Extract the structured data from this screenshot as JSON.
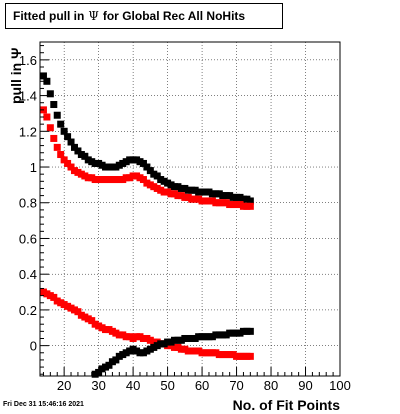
{
  "title": {
    "prefix": "Fitted pull in",
    "symbol": "Ψ",
    "suffix": "for Global Rec All NoHits"
  },
  "footer": {
    "timestamp": "Fri Dec 31 15:46:16 2021"
  },
  "chart_data": {
    "type": "scatter",
    "title": "Fitted pull in Ψ for Global Rec All NoHits",
    "xlabel": "No. of Fit Points",
    "ylabel": "pull in Ψ",
    "xlim": [
      13,
      100
    ],
    "ylim": [
      -0.17,
      1.7
    ],
    "xticks": [
      20,
      30,
      40,
      50,
      60,
      70,
      80,
      90,
      100
    ],
    "yticks": [
      0,
      0.2,
      0.4,
      0.6,
      0.8,
      1,
      1.2,
      1.4,
      1.6
    ],
    "ytick_labels": [
      "0",
      "0.2",
      "0.4",
      "0.6",
      "0.8",
      "1",
      "1.2",
      "1.4",
      "1.6"
    ],
    "grid": true,
    "legend": "none",
    "colors": {
      "black": "#000000",
      "red": "#ff0000"
    },
    "series": [
      {
        "color": "black",
        "x": [
          14,
          15,
          16,
          17,
          18,
          19,
          20,
          21,
          22,
          23,
          24,
          25,
          26,
          27,
          28,
          29,
          30,
          31,
          32,
          33,
          34,
          35,
          36,
          37,
          38,
          39,
          40,
          41,
          42,
          43,
          44,
          45,
          46,
          47,
          48,
          49,
          50,
          51,
          52,
          53,
          54,
          55,
          56,
          57,
          58,
          59,
          60,
          61,
          62,
          63,
          64,
          65,
          66,
          67,
          68,
          69,
          70,
          71,
          72,
          73,
          74
        ],
        "y": [
          1.51,
          1.48,
          1.41,
          1.35,
          1.29,
          1.24,
          1.2,
          1.17,
          1.14,
          1.11,
          1.09,
          1.07,
          1.06,
          1.04,
          1.03,
          1.02,
          1.02,
          1.01,
          1.0,
          1.0,
          1.0,
          1.0,
          1.01,
          1.02,
          1.03,
          1.04,
          1.04,
          1.04,
          1.03,
          1.02,
          1.0,
          0.98,
          0.96,
          0.95,
          0.93,
          0.92,
          0.91,
          0.9,
          0.89,
          0.89,
          0.88,
          0.88,
          0.87,
          0.87,
          0.87,
          0.86,
          0.86,
          0.86,
          0.86,
          0.85,
          0.85,
          0.85,
          0.84,
          0.84,
          0.84,
          0.83,
          0.83,
          0.83,
          0.82,
          0.82,
          0.81
        ]
      },
      {
        "color": "red",
        "x": [
          14,
          15,
          16,
          17,
          18,
          19,
          20,
          21,
          22,
          23,
          24,
          25,
          26,
          27,
          28,
          29,
          30,
          31,
          32,
          33,
          34,
          35,
          36,
          37,
          38,
          39,
          40,
          41,
          42,
          43,
          44,
          45,
          46,
          47,
          48,
          49,
          50,
          51,
          52,
          53,
          54,
          55,
          56,
          57,
          58,
          59,
          60,
          61,
          62,
          63,
          64,
          65,
          66,
          67,
          68,
          69,
          70,
          71,
          72,
          73,
          74
        ],
        "y": [
          1.32,
          1.28,
          1.22,
          1.16,
          1.11,
          1.07,
          1.04,
          1.02,
          1.0,
          0.98,
          0.97,
          0.96,
          0.95,
          0.94,
          0.94,
          0.93,
          0.93,
          0.93,
          0.93,
          0.93,
          0.93,
          0.93,
          0.93,
          0.93,
          0.94,
          0.94,
          0.95,
          0.95,
          0.94,
          0.93,
          0.91,
          0.9,
          0.89,
          0.88,
          0.87,
          0.86,
          0.86,
          0.85,
          0.85,
          0.84,
          0.84,
          0.83,
          0.83,
          0.82,
          0.82,
          0.82,
          0.81,
          0.81,
          0.81,
          0.81,
          0.8,
          0.8,
          0.8,
          0.8,
          0.79,
          0.79,
          0.79,
          0.79,
          0.78,
          0.78,
          0.78
        ]
      },
      {
        "color": "red",
        "x": [
          14,
          15,
          16,
          17,
          18,
          19,
          20,
          21,
          22,
          23,
          24,
          25,
          26,
          27,
          28,
          29,
          30,
          31,
          32,
          33,
          34,
          35,
          36,
          37,
          38,
          39,
          40,
          41,
          42,
          43,
          44,
          45,
          46,
          47,
          48,
          49,
          50,
          51,
          52,
          53,
          54,
          55,
          56,
          57,
          58,
          59,
          60,
          61,
          62,
          63,
          64,
          65,
          66,
          67,
          68,
          69,
          70,
          71,
          72,
          73,
          74
        ],
        "y": [
          0.3,
          0.29,
          0.28,
          0.27,
          0.25,
          0.24,
          0.23,
          0.22,
          0.21,
          0.2,
          0.19,
          0.17,
          0.16,
          0.15,
          0.14,
          0.12,
          0.11,
          0.1,
          0.09,
          0.09,
          0.08,
          0.07,
          0.06,
          0.06,
          0.05,
          0.05,
          0.04,
          0.05,
          0.05,
          0.04,
          0.04,
          0.03,
          0.02,
          0.02,
          0.01,
          0.01,
          0.0,
          0.0,
          -0.01,
          -0.01,
          -0.02,
          -0.02,
          -0.03,
          -0.03,
          -0.03,
          -0.03,
          -0.04,
          -0.04,
          -0.04,
          -0.04,
          -0.04,
          -0.05,
          -0.05,
          -0.05,
          -0.05,
          -0.05,
          -0.06,
          -0.06,
          -0.06,
          -0.06,
          -0.06
        ]
      },
      {
        "color": "black",
        "x": [
          29,
          30,
          31,
          32,
          33,
          34,
          35,
          36,
          37,
          38,
          39,
          40,
          41,
          42,
          43,
          44,
          45,
          46,
          47,
          48,
          49,
          50,
          51,
          52,
          53,
          54,
          55,
          56,
          57,
          58,
          59,
          60,
          61,
          62,
          63,
          64,
          65,
          66,
          67,
          68,
          69,
          70,
          71,
          72,
          73,
          74
        ],
        "y": [
          -0.16,
          -0.15,
          -0.13,
          -0.12,
          -0.11,
          -0.09,
          -0.08,
          -0.06,
          -0.05,
          -0.04,
          -0.03,
          -0.02,
          -0.03,
          -0.04,
          -0.04,
          -0.03,
          -0.02,
          -0.01,
          0.0,
          0.01,
          0.01,
          0.02,
          0.02,
          0.03,
          0.03,
          0.03,
          0.04,
          0.04,
          0.04,
          0.04,
          0.05,
          0.05,
          0.05,
          0.05,
          0.05,
          0.06,
          0.06,
          0.06,
          0.06,
          0.07,
          0.07,
          0.07,
          0.07,
          0.08,
          0.08,
          0.08
        ]
      }
    ]
  }
}
